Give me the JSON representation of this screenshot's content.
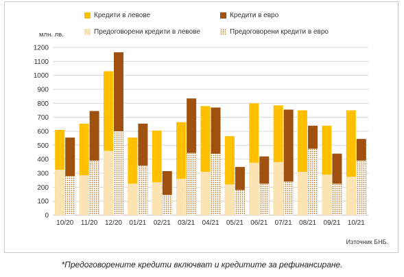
{
  "colors": {
    "lev_new": "#FFC000",
    "eur_new": "#A0500F",
    "lev_refi": "#FCE4B2",
    "eur_refi_dot": "#B8782A",
    "grid": "#d9d9d9"
  },
  "chart_data": {
    "type": "bar",
    "unit": "млн. лв.",
    "source": "Източник БНБ.",
    "footnote": "*Предоговорените кредити включват и кредитите за рефинансиране.",
    "categories": [
      "10/20",
      "11/20",
      "12/20",
      "01/21",
      "02/21",
      "03/21",
      "04/21",
      "05/21",
      "06/21",
      "07/21",
      "08/21",
      "09/21",
      "10/21"
    ],
    "ylim": [
      0,
      1200
    ],
    "yticks": [
      0,
      100,
      200,
      300,
      400,
      500,
      600,
      700,
      800,
      900,
      1000,
      1100,
      1200
    ],
    "grid": true,
    "legend_position": "top",
    "legend": [
      "Кредити в левове",
      "Кредити в евро",
      "Предоговорени кредити в левове",
      "Предоговорени кредити в евро"
    ],
    "series": [
      {
        "name": "Кредити в левове",
        "values": [
          610,
          655,
          1030,
          555,
          605,
          665,
          780,
          565,
          800,
          785,
          750,
          640,
          750
        ]
      },
      {
        "name": "Предоговорени кредити в левове",
        "values": [
          325,
          285,
          460,
          225,
          235,
          260,
          310,
          220,
          375,
          380,
          310,
          290,
          275
        ]
      },
      {
        "name": "Кредити в евро",
        "values": [
          555,
          745,
          1165,
          655,
          315,
          835,
          770,
          345,
          420,
          755,
          640,
          440,
          545
        ]
      },
      {
        "name": "Предоговорени кредити в евро",
        "values": [
          280,
          390,
          600,
          355,
          145,
          445,
          440,
          180,
          225,
          240,
          475,
          225,
          390
        ]
      }
    ]
  }
}
